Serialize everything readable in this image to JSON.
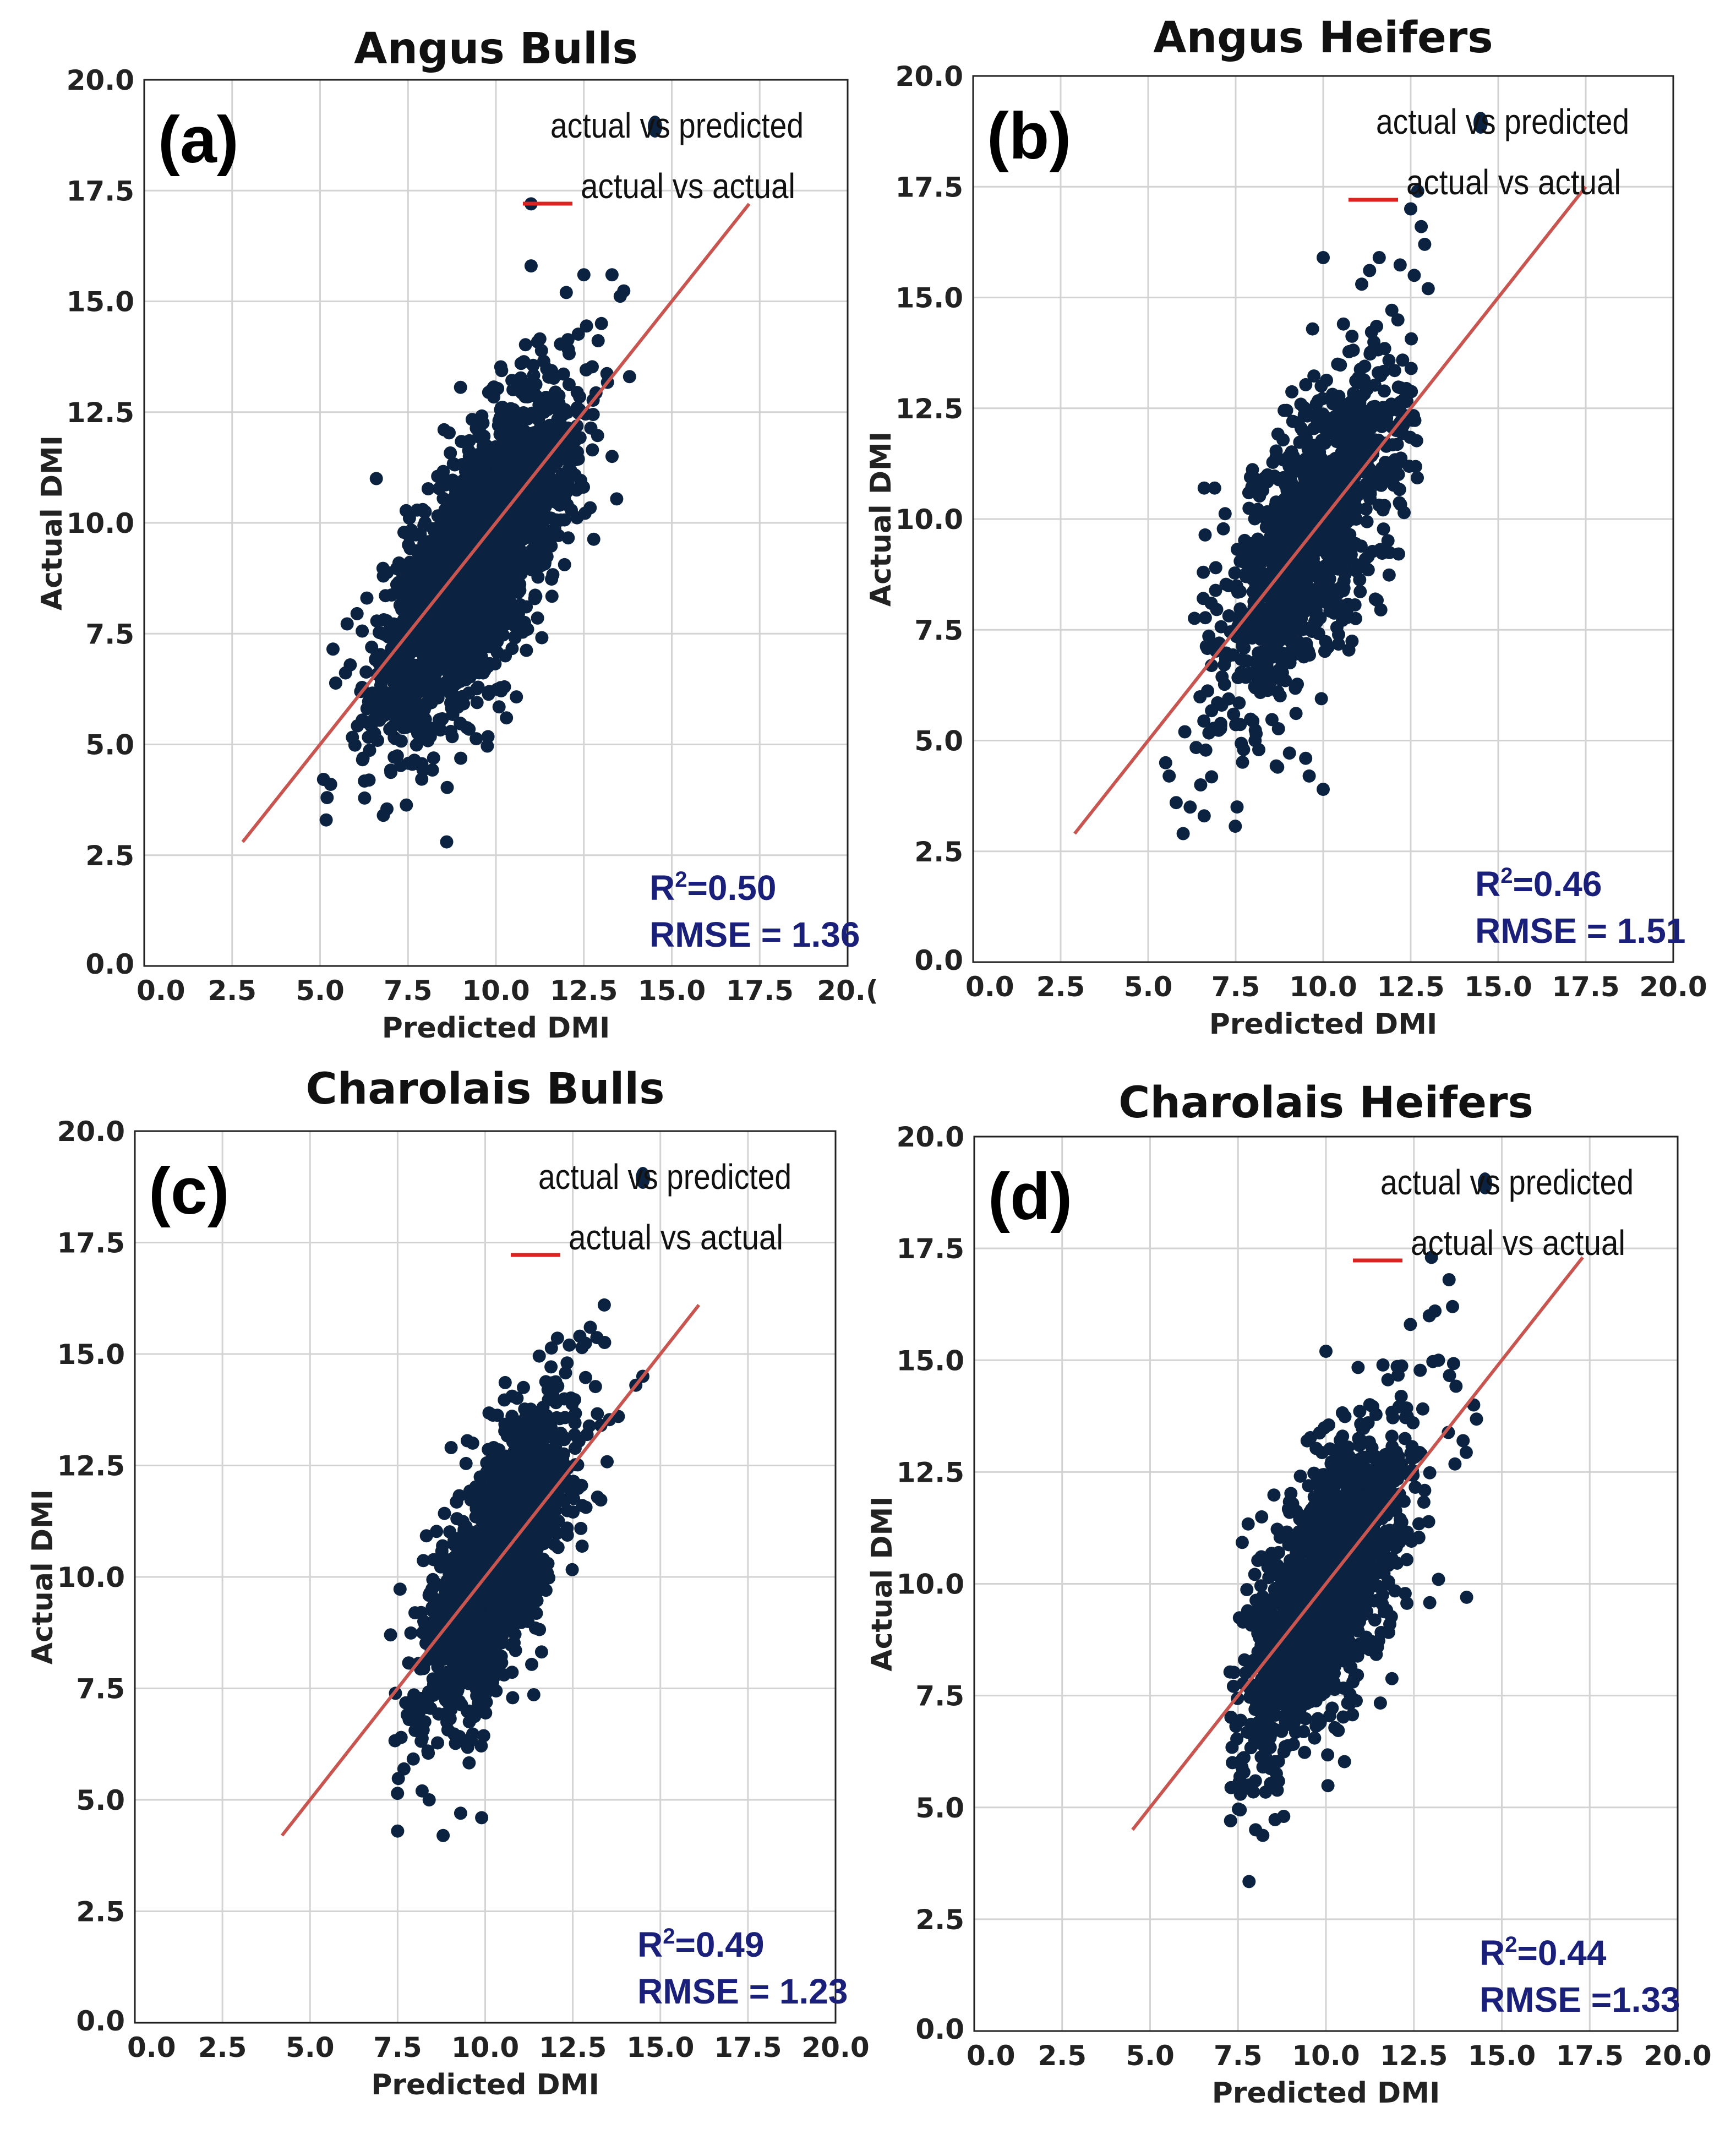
{
  "colors": {
    "point": "#0b2340",
    "diagonal": "#c8554f",
    "legend_line": "#dd2222",
    "stats_text": "#1a1f7a",
    "grid": "#d3d3d3",
    "axis": "#222222"
  },
  "legend": {
    "points_label": "actual vs predicted",
    "line_label": "actual vs actual"
  },
  "chart_data": [
    {
      "id": "a",
      "type": "scatter",
      "panel_label": "(a)",
      "title": "Angus Bulls",
      "xlabel": "Predicted DMI",
      "ylabel": "Actual DMI",
      "xlim": [
        0,
        20
      ],
      "ylim": [
        0,
        20
      ],
      "xticks": [
        "0.0",
        "2.5",
        "5.0",
        "7.5",
        "10.0",
        "12.5",
        "15.0",
        "17.5",
        "20.("
      ],
      "yticks": [
        "0.0",
        "2.5",
        "5.0",
        "7.5",
        "10.0",
        "12.5",
        "15.0",
        "17.5",
        "20.0"
      ],
      "grid": true,
      "legend_position": "top-right",
      "diagonal_range": [
        2.8,
        17.2
      ],
      "r2_label": "R",
      "r2_value": "=0.50",
      "rmse_label": "RMSE = 1.36",
      "cluster": {
        "center": [
          9.4,
          9.1
        ],
        "sd_x": 1.35,
        "sd_y": 1.9,
        "corr": 0.71,
        "n": 2200,
        "x_range": [
          5.0,
          13.8
        ]
      },
      "outliers": [
        [
          11.0,
          17.2
        ],
        [
          11.0,
          15.8
        ],
        [
          12.0,
          15.2
        ],
        [
          12.5,
          15.6
        ],
        [
          13.3,
          15.6
        ],
        [
          13.8,
          13.3
        ],
        [
          6.6,
          11.0
        ],
        [
          8.6,
          2.8
        ],
        [
          6.8,
          3.4
        ],
        [
          5.2,
          3.8
        ],
        [
          5.3,
          4.1
        ],
        [
          10.3,
          5.6
        ],
        [
          10.9,
          7.6
        ],
        [
          13.0,
          14.5
        ]
      ]
    },
    {
      "id": "b",
      "type": "scatter",
      "panel_label": "(b)",
      "title": "Angus Heifers",
      "xlabel": "Predicted DMI",
      "ylabel": "Actual DMI",
      "xlim": [
        0,
        20
      ],
      "ylim": [
        0,
        20
      ],
      "xticks": [
        "0.0",
        "2.5",
        "5.0",
        "7.5",
        "10.0",
        "12.5",
        "15.0",
        "17.5",
        "20.0"
      ],
      "yticks": [
        "0.0",
        "2.5",
        "5.0",
        "7.5",
        "10.0",
        "12.5",
        "15.0",
        "17.5",
        "20.0"
      ],
      "grid": true,
      "legend_position": "top-right",
      "diagonal_range": [
        2.9,
        17.5
      ],
      "r2_label": "R",
      "r2_value": "=0.46",
      "rmse_label": "RMSE = 1.51",
      "cluster": {
        "center": [
          9.7,
          9.6
        ],
        "sd_x": 1.35,
        "sd_y": 2.0,
        "corr": 0.68,
        "n": 1100,
        "x_range": [
          5.5,
          12.8
        ]
      },
      "outliers": [
        [
          12.7,
          17.4
        ],
        [
          12.5,
          17.0
        ],
        [
          12.8,
          16.6
        ],
        [
          12.9,
          16.2
        ],
        [
          13.0,
          15.2
        ],
        [
          12.6,
          15.5
        ],
        [
          11.6,
          15.9
        ],
        [
          10.0,
          15.9
        ],
        [
          11.1,
          15.3
        ],
        [
          5.5,
          4.5
        ],
        [
          5.6,
          4.2
        ],
        [
          6.0,
          2.9
        ],
        [
          5.8,
          3.6
        ],
        [
          6.2,
          3.5
        ],
        [
          6.6,
          3.3
        ],
        [
          6.5,
          4.0
        ],
        [
          9.5,
          4.6
        ],
        [
          9.6,
          4.2
        ],
        [
          10.0,
          3.9
        ],
        [
          8.7,
          4.4
        ],
        [
          6.6,
          10.7
        ],
        [
          6.9,
          10.7
        ]
      ]
    },
    {
      "id": "c",
      "type": "scatter",
      "panel_label": "(c)",
      "title": "Charolais Bulls",
      "xlabel": "Predicted DMI",
      "ylabel": "Actual DMI",
      "xlim": [
        0,
        20
      ],
      "ylim": [
        0,
        20
      ],
      "xticks": [
        "0.0",
        "2.5",
        "5.0",
        "7.5",
        "10.0",
        "12.5",
        "15.0",
        "17.5",
        "20.0"
      ],
      "yticks": [
        "0.0",
        "2.5",
        "5.0",
        "7.5",
        "10.0",
        "12.5",
        "15.0",
        "17.5",
        "20.0"
      ],
      "grid": true,
      "legend_position": "top-right",
      "diagonal_range": [
        4.2,
        16.1
      ],
      "r2_label": "R",
      "r2_value": "=0.49",
      "rmse_label": "RMSE = 1.23",
      "cluster": {
        "center": [
          10.3,
          10.3
        ],
        "sd_x": 1.1,
        "sd_y": 1.75,
        "corr": 0.7,
        "n": 1600,
        "x_range": [
          7.4,
          13.6
        ]
      },
      "outliers": [
        [
          13.4,
          16.1
        ],
        [
          13.0,
          15.6
        ],
        [
          12.7,
          15.4
        ],
        [
          12.4,
          15.2
        ],
        [
          14.5,
          14.5
        ],
        [
          14.3,
          14.3
        ],
        [
          13.8,
          13.6
        ],
        [
          7.5,
          4.3
        ],
        [
          8.8,
          4.2
        ],
        [
          9.3,
          4.7
        ],
        [
          9.9,
          4.6
        ],
        [
          8.4,
          5.0
        ],
        [
          8.2,
          5.2
        ],
        [
          7.3,
          8.7
        ],
        [
          7.6,
          6.4
        ]
      ]
    },
    {
      "id": "d",
      "type": "scatter",
      "panel_label": "(d)",
      "title": "Charolais Heifers",
      "xlabel": "Predicted DMI",
      "ylabel": "Actual DMI",
      "xlim": [
        0,
        20
      ],
      "ylim": [
        0,
        20
      ],
      "xticks": [
        "0.0",
        "2.5",
        "5.0",
        "7.5",
        "10.0",
        "12.5",
        "15.0",
        "17.5",
        "20.0"
      ],
      "yticks": [
        "0.0",
        "2.5",
        "5.0",
        "7.5",
        "10.0",
        "12.5",
        "15.0",
        "17.5",
        "20.0"
      ],
      "grid": true,
      "legend_position": "top-right",
      "diagonal_range": [
        4.5,
        17.3
      ],
      "r2_label": "R",
      "r2_value": "=0.44",
      "rmse_label": "RMSE =1.33",
      "cluster": {
        "center": [
          10.0,
          9.9
        ],
        "sd_x": 1.2,
        "sd_y": 1.85,
        "corr": 0.66,
        "n": 1500,
        "x_range": [
          7.2,
          14.5
        ]
      },
      "outliers": [
        [
          13.0,
          17.3
        ],
        [
          13.5,
          16.8
        ],
        [
          13.6,
          16.2
        ],
        [
          13.1,
          16.1
        ],
        [
          12.4,
          15.8
        ],
        [
          13.2,
          15.0
        ],
        [
          14.2,
          14.0
        ],
        [
          13.9,
          13.2
        ],
        [
          14.0,
          9.7
        ],
        [
          13.2,
          10.1
        ],
        [
          8.0,
          4.5
        ],
        [
          8.8,
          4.8
        ],
        [
          7.8,
          5.5
        ],
        [
          10.0,
          15.2
        ]
      ]
    }
  ]
}
